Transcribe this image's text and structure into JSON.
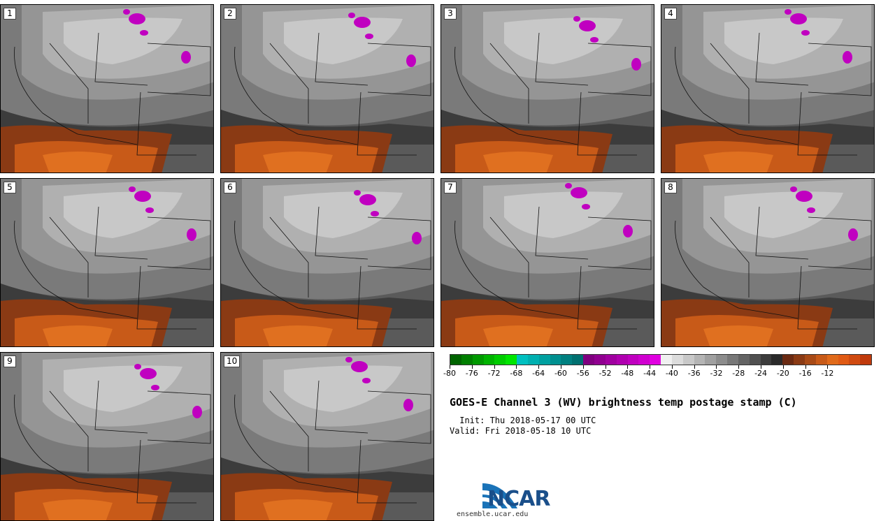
{
  "panels": [
    {
      "label": "1"
    },
    {
      "label": "2"
    },
    {
      "label": "3"
    },
    {
      "label": "4"
    },
    {
      "label": "5"
    },
    {
      "label": "6"
    },
    {
      "label": "7"
    },
    {
      "label": "8"
    },
    {
      "label": "9"
    },
    {
      "label": "10"
    }
  ],
  "colorbar": {
    "colors": [
      "#006400",
      "#007f00",
      "#009900",
      "#00b300",
      "#00cc00",
      "#00e600",
      "#00c0c0",
      "#00b0b0",
      "#00a0a0",
      "#009090",
      "#008080",
      "#007070",
      "#800080",
      "#900090",
      "#a000a0",
      "#b000b0",
      "#c000c0",
      "#d000d0",
      "#e000e0",
      "#f0f0f0",
      "#dcdcdc",
      "#c8c8c8",
      "#b4b4b4",
      "#a0a0a0",
      "#8c8c8c",
      "#787878",
      "#646464",
      "#505050",
      "#3c3c3c",
      "#2a2a2a",
      "#6a2a12",
      "#8a3a14",
      "#a84a16",
      "#c85a18",
      "#e06a1a",
      "#e05a14",
      "#d04a10",
      "#c03a0c"
    ],
    "tick_labels": [
      "-80",
      "-76",
      "-72",
      "-68",
      "-64",
      "-60",
      "-56",
      "-52",
      "-48",
      "-44",
      "-40",
      "-36",
      "-32",
      "-28",
      "-24",
      "-20",
      "-16",
      "-12"
    ]
  },
  "title": "GOES-E Channel 3 (WV) brightness temp postage stamp (C)",
  "init": " Init: Thu 2018-05-17 00 UTC",
  "valid": "Valid: Fri 2018-05-18 10 UTC",
  "logo": {
    "text": "NCAR",
    "url": "ensemble.ucar.edu"
  }
}
